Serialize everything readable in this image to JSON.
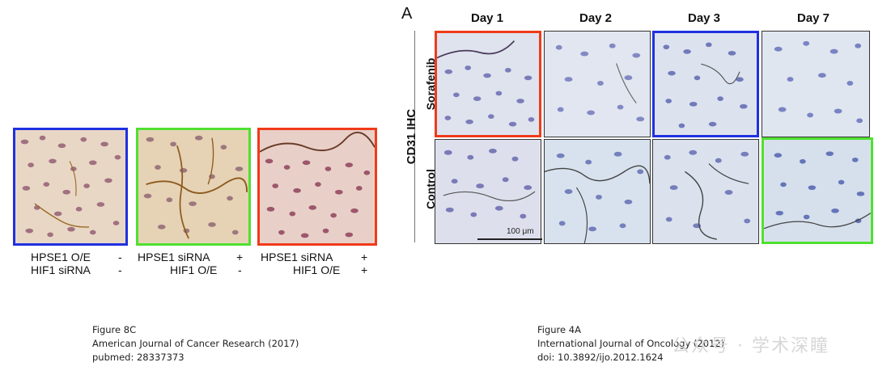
{
  "left_figure": {
    "labels": [
      {
        "line1": "HPSE1 O/E",
        "sign1": "-",
        "line2": "HIF1 siRNA",
        "sign2": "-"
      },
      {
        "line1": "HPSE1 siRNA",
        "sign1": "+",
        "line2": "HIF1 O/E",
        "sign2": "-"
      },
      {
        "line1": "HPSE1 siRNA",
        "sign1": "+",
        "line2": "HIF1 O/E",
        "sign2": "+"
      }
    ],
    "caption": {
      "figure": "Figure 8C",
      "journal": "American Journal of Cancer Research (2017)",
      "id": "pubmed: 28337373"
    },
    "border_colors": [
      "#2030e0",
      "#50e030",
      "#f03a1a"
    ]
  },
  "right_figure": {
    "panel_letter": "A",
    "columns": [
      "Day 1",
      "Day 2",
      "Day 3",
      "Day 7"
    ],
    "rows": [
      "Sorafenib",
      "Control"
    ],
    "side_label": "CD31 IHC",
    "scale_bar": "100 μm",
    "caption": {
      "figure": "Figure 4A",
      "journal": "International Journal of Oncology (2012)",
      "id": "doi: 10.3892/ijo.2012.1624"
    }
  },
  "watermark": "公众号 · 学术深瞳"
}
